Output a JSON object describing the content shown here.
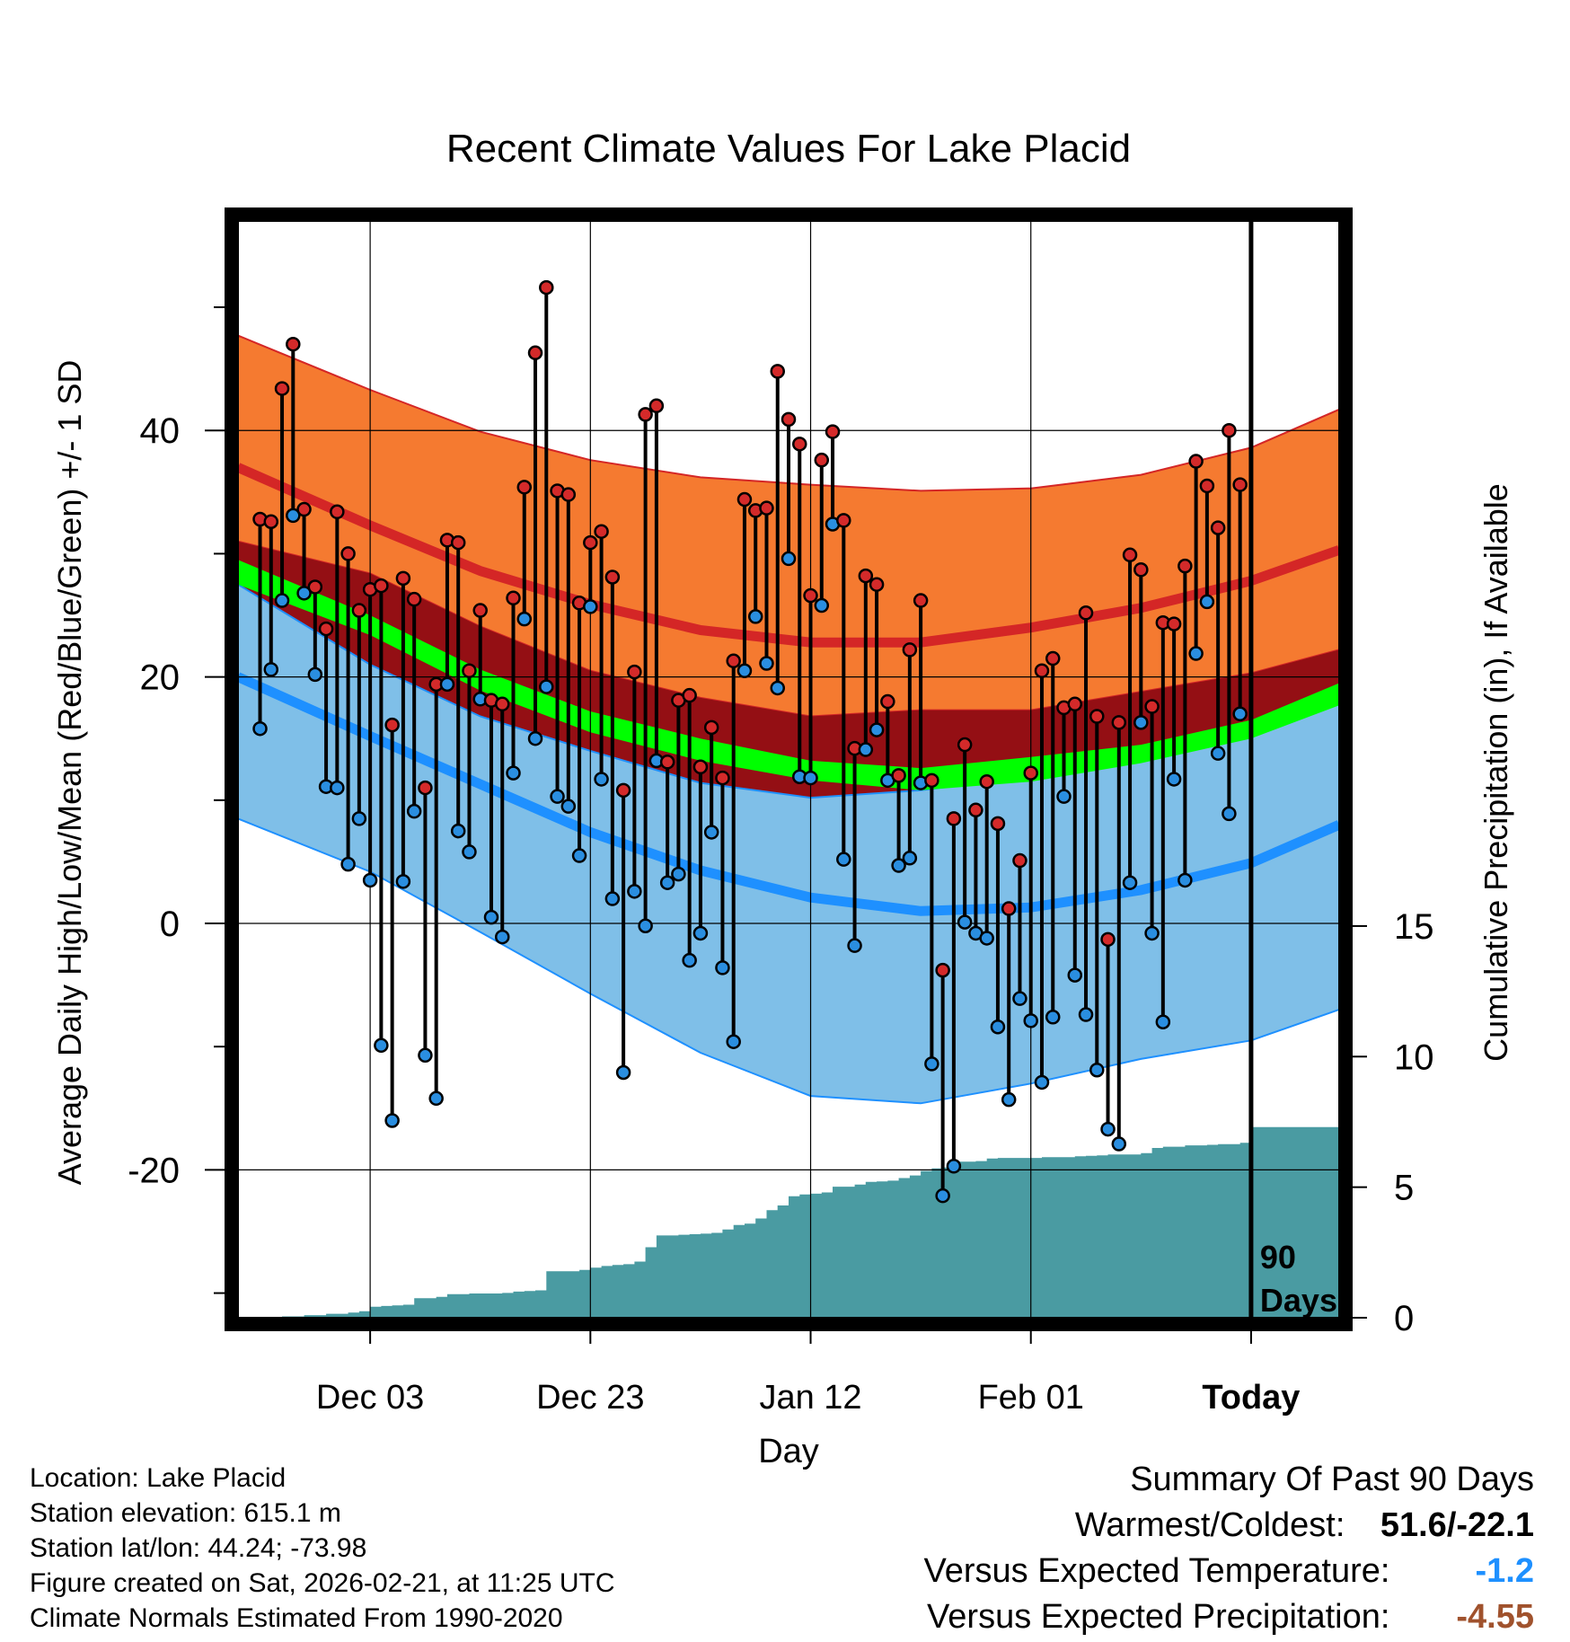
{
  "chart_data": {
    "type": "line",
    "title": "Recent Climate Values For Lake Placid",
    "xlabel": "Day",
    "ylabel_left": "Average Daily High/Low/Mean (Red/Blue/Green) +/- 1 SD",
    "ylabel_right": "Cumulative Precipitation (in), If Available",
    "xlim": [
      -12,
      88
    ],
    "ylim": [
      -32,
      57
    ],
    "y2lim": [
      0,
      42
    ],
    "x_ticks": [
      0,
      20,
      40,
      60,
      80
    ],
    "x_tick_labels": [
      "Dec 03",
      "Dec 23",
      "Jan 12",
      "Feb 01",
      "Today"
    ],
    "y_ticks": [
      -20,
      0,
      20,
      40
    ],
    "y_tick_labels": [
      "-20",
      "0",
      "20",
      "40"
    ],
    "y2_ticks": [
      0,
      5,
      10,
      15
    ],
    "y2_tick_labels": [
      "0",
      "5",
      "10",
      "15"
    ],
    "today_x": 80,
    "today_label": [
      "90",
      "Days"
    ],
    "normals": {
      "x": [
        -12,
        0,
        10,
        20,
        30,
        40,
        50,
        60,
        70,
        80,
        88
      ],
      "high_mean": [
        37,
        32.3,
        28.6,
        25.9,
        23.8,
        22.8,
        22.8,
        24.0,
        25.6,
        27.8,
        30.3
      ],
      "high_sd_upper": [
        47.7,
        43.3,
        39.9,
        37.6,
        36.2,
        35.6,
        35.1,
        35.3,
        36.4,
        38.6,
        41.7
      ],
      "high_sd_lower": [
        31,
        28.4,
        24.1,
        20.5,
        18.3,
        16.8,
        17.3,
        17.3,
        18.8,
        20.3,
        22.2
      ],
      "low_mean": [
        20,
        15.2,
        11.3,
        7.4,
        4.3,
        2.1,
        1.0,
        1.3,
        2.7,
        4.9,
        8.0
      ],
      "low_sd_upper": [
        27.5,
        21.0,
        16.8,
        14.0,
        11.4,
        10.2,
        10.8,
        11.9,
        13.8,
        16.0,
        18.5
      ],
      "low_sd_lower": [
        8.5,
        4.2,
        -0.7,
        -5.7,
        -10.5,
        -14.0,
        -14.6,
        -13.0,
        -11.0,
        -9.5,
        -7.0
      ],
      "mean_upper": [
        29.5,
        25.0,
        20.6,
        17.2,
        15.0,
        13.2,
        12.6,
        13.5,
        14.5,
        16.5,
        19.5
      ],
      "mean_lower": [
        27.5,
        23.4,
        18.9,
        15.5,
        13.2,
        11.6,
        10.8,
        11.5,
        13.0,
        15.0,
        17.7
      ]
    },
    "series": [
      {
        "name": "Daily high/low",
        "x": [
          -10,
          -9,
          -8,
          -7,
          -6,
          -5,
          -4,
          -3,
          -2,
          -1,
          0,
          1,
          2,
          3,
          4,
          5,
          6,
          7,
          8,
          9,
          10,
          11,
          12,
          13,
          14,
          15,
          16,
          17,
          18,
          19,
          20,
          21,
          22,
          23,
          24,
          25,
          26,
          27,
          28,
          29,
          30,
          31,
          32,
          33,
          34,
          35,
          36,
          37,
          38,
          39,
          40,
          41,
          42,
          43,
          44,
          45,
          46,
          47,
          48,
          49,
          50,
          51,
          52,
          53,
          54,
          55,
          56,
          57,
          58,
          59,
          60,
          61,
          62,
          63,
          64,
          65,
          66,
          67,
          68,
          69,
          70,
          71,
          72,
          73,
          74,
          75,
          76,
          77,
          78,
          79
        ],
        "high": [
          32.8,
          32.6,
          43.4,
          47.0,
          33.6,
          27.3,
          23.9,
          33.4,
          30.0,
          25.4,
          27.1,
          27.4,
          16.1,
          28.0,
          26.3,
          11.0,
          19.4,
          31.1,
          30.9,
          20.5,
          25.4,
          18.1,
          17.8,
          26.4,
          35.4,
          46.3,
          51.6,
          35.1,
          34.8,
          26.0,
          30.9,
          31.8,
          28.1,
          10.8,
          20.4,
          41.3,
          42.0,
          13.1,
          18.1,
          18.5,
          12.7,
          15.9,
          11.8,
          21.3,
          34.4,
          33.5,
          33.7,
          44.8,
          40.9,
          38.9,
          26.6,
          37.6,
          39.9,
          32.7,
          14.2,
          28.2,
          27.5,
          18.0,
          12.0,
          22.2,
          26.2,
          11.6,
          -3.8,
          8.5,
          14.5,
          9.2,
          11.5,
          8.1,
          1.2,
          5.1,
          12.2,
          20.5,
          21.5,
          17.5,
          17.8,
          25.2,
          16.8,
          -1.3,
          16.3,
          29.9,
          28.7,
          17.6,
          24.4,
          24.3,
          29.0,
          37.5,
          35.5,
          32.1,
          40.0,
          35.6
        ],
        "low": [
          15.8,
          20.6,
          26.2,
          33.1,
          26.8,
          20.2,
          11.1,
          11.0,
          4.8,
          8.5,
          3.5,
          -9.9,
          -16.0,
          3.4,
          9.1,
          -10.7,
          -14.2,
          19.4,
          7.5,
          5.8,
          18.2,
          0.5,
          -1.1,
          12.2,
          24.7,
          15.0,
          19.2,
          10.3,
          9.5,
          5.5,
          25.7,
          11.7,
          2.0,
          -12.1,
          2.6,
          -0.2,
          13.2,
          3.3,
          4.0,
          -3.0,
          -0.8,
          7.4,
          -3.6,
          -9.6,
          20.5,
          24.9,
          21.1,
          19.1,
          29.6,
          11.9,
          11.8,
          25.8,
          32.4,
          5.2,
          -1.8,
          14.1,
          15.7,
          11.6,
          4.7,
          5.3,
          11.4,
          -11.4,
          -22.1,
          -19.7,
          0.1,
          -0.8,
          -1.2,
          -8.4,
          -14.3,
          -6.1,
          -7.9,
          -12.9,
          -7.6,
          10.3,
          -4.2,
          -7.4,
          -11.9,
          -16.7,
          -17.9,
          3.3,
          16.3,
          -0.8,
          -8.0,
          11.7,
          3.5,
          21.9,
          26.1,
          13.8,
          8.9,
          17.0
        ]
      },
      {
        "name": "Cumulative precipitation (in)",
        "x": [
          -12,
          -10,
          -8,
          -6,
          -4,
          -2,
          -1,
          0,
          1,
          2,
          3,
          4,
          5,
          6,
          7,
          8,
          9,
          10,
          11,
          12,
          13,
          14,
          15,
          16,
          17,
          18,
          19,
          20,
          21,
          22,
          23,
          24,
          25,
          26,
          27,
          28,
          29,
          30,
          31,
          32,
          33,
          34,
          35,
          36,
          37,
          38,
          39,
          40,
          41,
          42,
          43,
          44,
          45,
          46,
          47,
          48,
          49,
          50,
          51,
          52,
          53,
          54,
          55,
          56,
          57,
          58,
          59,
          60,
          61,
          62,
          63,
          64,
          65,
          66,
          67,
          68,
          69,
          70,
          71,
          72,
          73,
          74,
          75,
          76,
          77,
          78,
          79,
          80,
          81,
          82,
          83,
          84,
          85,
          86,
          87,
          88
        ],
        "cum_precip": [
          0,
          0,
          0.05,
          0.1,
          0.15,
          0.2,
          0.25,
          0.42,
          0.45,
          0.47,
          0.5,
          0.75,
          0.75,
          0.8,
          0.9,
          0.9,
          0.93,
          0.93,
          0.93,
          0.95,
          1.0,
          1.02,
          1.05,
          1.78,
          1.78,
          1.78,
          1.83,
          1.92,
          1.98,
          2.02,
          2.05,
          2.15,
          2.7,
          3.15,
          3.15,
          3.18,
          3.2,
          3.22,
          3.25,
          3.38,
          3.55,
          3.6,
          3.8,
          4.12,
          4.3,
          4.65,
          4.72,
          4.75,
          4.8,
          5.02,
          5.02,
          5.1,
          5.2,
          5.22,
          5.25,
          5.35,
          5.45,
          5.62,
          5.72,
          5.75,
          5.98,
          5.98,
          6.0,
          6.1,
          6.12,
          6.12,
          6.12,
          6.12,
          6.15,
          6.15,
          6.15,
          6.18,
          6.2,
          6.22,
          6.25,
          6.25,
          6.25,
          6.3,
          6.5,
          6.55,
          6.55,
          6.6,
          6.6,
          6.62,
          6.65,
          6.65,
          6.7,
          7.3,
          7.3,
          7.3,
          7.3,
          7.3,
          7.3,
          7.3,
          7.3,
          7.3
        ]
      }
    ],
    "colors": {
      "high_band": "#f57a30",
      "high_line": "#d42626",
      "mean_high_band": "#940f14",
      "mean_band": "#00ff00",
      "low_band": "#7fbfe8",
      "low_line": "#1e90ff",
      "precip": "#4a9ba2",
      "marker_high": "#d42a2a",
      "marker_low": "#2a8ee0"
    }
  },
  "info": {
    "location": "Location: Lake Placid",
    "elevation": "Station elevation: 615.1 m",
    "latlon": "Station lat/lon: 44.24; -73.98",
    "created": "Figure created on Sat, 2026-02-21, at 11:25 UTC",
    "normals": "Climate Normals Estimated From 1990-2020"
  },
  "summary": {
    "title": "Summary Of Past 90 Days",
    "warmest_label": "Warmest/Coldest:",
    "warmest_value": "51.6/-22.1",
    "temp_label": "Versus Expected Temperature:",
    "temp_value": "-1.2",
    "temp_color": "#1e90ff",
    "precip_label": "Versus Expected Precipitation:",
    "precip_value": "-4.55",
    "precip_color": "#a0522d"
  }
}
